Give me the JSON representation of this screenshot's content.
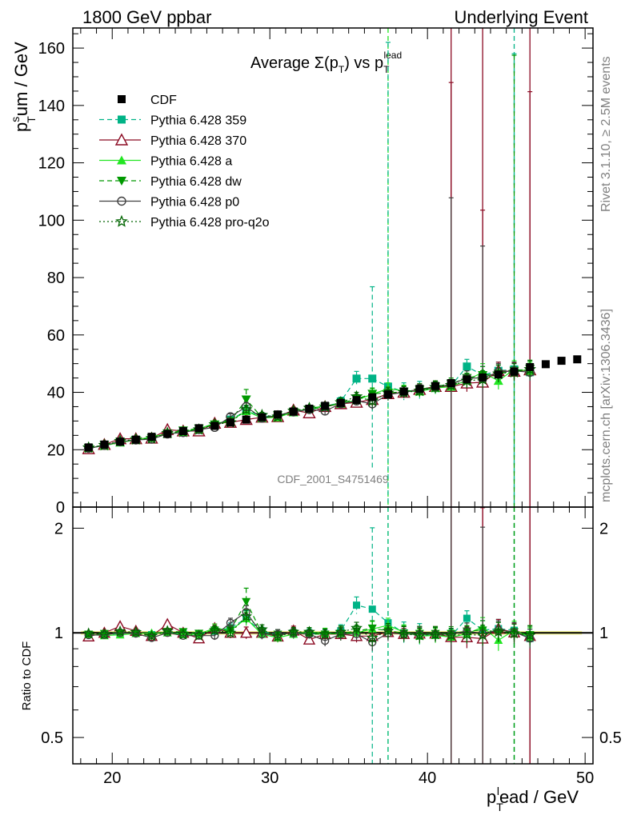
{
  "header": {
    "left": "1800 GeV ppbar",
    "right": "Underlying Event"
  },
  "side": {
    "rivet": "Rivet 3.1.10, ≥ 2.5M events",
    "mcplots": "mcplots.cern.ch [arXiv:1306.3436]"
  },
  "analysis_label": "CDF_2001_S4751469",
  "chart_data": [
    {
      "type": "scatter",
      "title": "Average Σ(p_T) vs p_T^lead",
      "title_parts": {
        "main": "Average ",
        "sigma": "Σ(p",
        "sub": "T",
        "close": ") vs p",
        "sub2": "T",
        "sup": "lead"
      },
      "ylabel_parts": {
        "p": "p",
        "sup": "s",
        "sub": "T",
        "rest": "um / GeV"
      },
      "xlim": [
        17.5,
        50.5
      ],
      "ylim": [
        0,
        167
      ],
      "yticks": [
        0,
        20,
        40,
        60,
        80,
        100,
        120,
        140,
        160
      ],
      "ytick_labels": [
        "0",
        "20",
        "40",
        "60",
        "80",
        "100",
        "120",
        "140",
        "160"
      ],
      "legend_position": "top-left",
      "series": [
        {
          "name": "CDF",
          "color": "#000000",
          "marker": "square",
          "line": "none",
          "x": [
            18.5,
            19.5,
            20.5,
            21.5,
            22.5,
            23.5,
            24.5,
            25.5,
            26.5,
            27.5,
            28.5,
            29.5,
            30.5,
            31.5,
            32.5,
            33.5,
            34.5,
            35.5,
            36.5,
            37.5,
            38.5,
            39.5,
            40.5,
            41.5,
            42.5,
            43.5,
            44.5,
            45.5,
            46.5,
            47.5,
            48.5,
            49.5
          ],
          "y": [
            20.8,
            21.8,
            22.8,
            23.5,
            24.5,
            25.5,
            26.5,
            27.5,
            28.3,
            29.5,
            30.5,
            31.3,
            32.3,
            33.3,
            34.3,
            35.3,
            36.3,
            37.3,
            38.3,
            39.3,
            40.3,
            41.2,
            42.2,
            43.2,
            44.5,
            45.2,
            46.2,
            47.2,
            48.8,
            49.8,
            51.0,
            51.5
          ]
        },
        {
          "name": "Pythia 6.428 359",
          "color": "#00b386",
          "marker": "square",
          "line": "dashed",
          "x": [
            18.5,
            19.5,
            20.5,
            21.5,
            22.5,
            23.5,
            24.5,
            25.5,
            26.5,
            27.5,
            28.5,
            29.5,
            30.5,
            31.5,
            32.5,
            33.5,
            34.5,
            35.5,
            36.5,
            37.5,
            38.5,
            39.5,
            40.5,
            41.5,
            42.5,
            43.5,
            44.5,
            45.5,
            46.5
          ],
          "y": [
            20.6,
            21.5,
            22.7,
            23.5,
            24.2,
            25.6,
            26.3,
            27.3,
            28.6,
            30.5,
            33.5,
            31.5,
            32.0,
            33.3,
            34.2,
            34.8,
            36.8,
            44.8,
            44.8,
            42.0,
            40.3,
            40.8,
            41.5,
            42.3,
            49.0,
            46.0,
            47.5,
            48.0,
            47.0
          ],
          "err": [
            0.5,
            0.5,
            0.5,
            0.5,
            0.5,
            0.5,
            0.5,
            0.5,
            0.8,
            1.0,
            1.8,
            1.0,
            1.0,
            1.0,
            1.0,
            1.2,
            1.5,
            2.5,
            32,
            120,
            3,
            3,
            2,
            2,
            2.5,
            3,
            3,
            110,
            3
          ]
        },
        {
          "name": "Pythia 6.428 370",
          "color": "#8b0a22",
          "marker": "triangle-open",
          "line": "solid",
          "x": [
            18.5,
            19.5,
            20.5,
            21.5,
            22.5,
            23.5,
            24.5,
            25.5,
            26.5,
            27.5,
            28.5,
            29.5,
            30.5,
            31.5,
            32.5,
            33.5,
            34.5,
            35.5,
            36.5,
            37.5,
            38.5,
            39.5,
            40.5,
            41.5,
            42.5,
            43.5,
            44.5,
            45.5,
            46.5
          ],
          "y": [
            20.3,
            21.8,
            23.8,
            23.8,
            24.0,
            27.0,
            26.5,
            26.5,
            29.2,
            29.5,
            30.5,
            31.3,
            31.5,
            33.8,
            32.8,
            35.0,
            36.0,
            36.5,
            37.5,
            39.5,
            40.0,
            41.0,
            42.0,
            42.0,
            43.2,
            43.5,
            47.5,
            47.3,
            47.8
          ],
          "err": [
            0.5,
            0.5,
            0.5,
            0.5,
            0.5,
            0.5,
            0.5,
            0.5,
            0.8,
            1.0,
            1.2,
            1.0,
            1.0,
            1.0,
            1.0,
            1.2,
            1.5,
            1.5,
            1.5,
            1.5,
            1.5,
            2,
            2,
            106,
            3,
            60,
            3,
            3,
            97
          ]
        },
        {
          "name": "Pythia 6.428 a",
          "color": "#22e622",
          "marker": "triangle",
          "line": "solid",
          "x": [
            18.5,
            19.5,
            20.5,
            21.5,
            22.5,
            23.5,
            24.5,
            25.5,
            26.5,
            27.5,
            28.5,
            29.5,
            30.5,
            31.5,
            32.5,
            33.5,
            34.5,
            35.5,
            36.5,
            37.5,
            38.5,
            39.5,
            40.5,
            41.5,
            42.5,
            43.5,
            44.5,
            45.5,
            46.5
          ],
          "y": [
            20.6,
            21.4,
            22.5,
            23.4,
            24.5,
            25.5,
            26.2,
            27.3,
            29.2,
            30.0,
            33.5,
            31.0,
            31.3,
            33.0,
            34.5,
            35.2,
            36.0,
            37.3,
            39.3,
            41.3,
            40.5,
            40.3,
            41.5,
            42.0,
            44.2,
            47.0,
            44.0,
            48.0,
            47.5
          ],
          "err": [
            0.5,
            0.5,
            0.5,
            0.5,
            0.5,
            0.5,
            0.5,
            0.5,
            0.8,
            1.0,
            1.5,
            1.0,
            1.0,
            1.0,
            1.0,
            1.2,
            1.5,
            1.5,
            2,
            2,
            2,
            2,
            2,
            2,
            2.5,
            3,
            3,
            3,
            3
          ]
        },
        {
          "name": "Pythia 6.428 dw",
          "color": "#009900",
          "marker": "triangle-down",
          "line": "dashed",
          "x": [
            18.5,
            19.5,
            20.5,
            21.5,
            22.5,
            23.5,
            24.5,
            25.5,
            26.5,
            27.5,
            28.5,
            29.5,
            30.5,
            31.5,
            32.5,
            33.5,
            34.5,
            35.5,
            36.5,
            37.5,
            38.5,
            39.5,
            40.5,
            41.5,
            42.5,
            43.5,
            44.5,
            45.5,
            46.5
          ],
          "y": [
            20.6,
            21.7,
            22.8,
            23.4,
            24.0,
            25.7,
            26.7,
            27.4,
            28.8,
            30.0,
            37.5,
            31.2,
            32.0,
            33.2,
            34.0,
            35.0,
            36.2,
            37.7,
            39.5,
            39.8,
            40.2,
            41.0,
            42.0,
            43.0,
            45.0,
            46.0,
            46.5,
            47.5,
            48.2
          ],
          "err": [
            0.5,
            0.5,
            0.5,
            0.5,
            0.5,
            0.5,
            0.5,
            0.5,
            0.8,
            1.0,
            3.5,
            1.0,
            1.0,
            1.0,
            1.0,
            1.2,
            1.5,
            1.5,
            2,
            2,
            2,
            2,
            2,
            2,
            2.5,
            3,
            3,
            110,
            3
          ]
        },
        {
          "name": "Pythia 6.428 p0",
          "color": "#404040",
          "marker": "circle-open",
          "line": "solid",
          "x": [
            18.5,
            19.5,
            20.5,
            21.5,
            22.5,
            23.5,
            24.5,
            25.5,
            26.5,
            27.5,
            28.5,
            29.5,
            30.5,
            31.5,
            32.5,
            33.5,
            34.5,
            35.5,
            36.5,
            37.5,
            38.5,
            39.5,
            40.5,
            41.5,
            42.5,
            43.5,
            44.5,
            45.5,
            46.5
          ],
          "y": [
            20.5,
            21.5,
            22.8,
            23.4,
            23.7,
            25.5,
            26.0,
            27.0,
            27.8,
            31.5,
            35.0,
            31.0,
            32.0,
            33.2,
            34.0,
            33.5,
            36.0,
            37.0,
            36.0,
            39.2,
            40.0,
            40.8,
            41.8,
            42.8,
            45.0,
            45.0,
            47.0,
            47.5,
            47.0
          ],
          "err": [
            0.5,
            0.5,
            0.5,
            0.5,
            0.5,
            0.5,
            0.5,
            0.5,
            0.8,
            1.0,
            1.5,
            1.0,
            1.0,
            1.0,
            1.0,
            1.2,
            1.5,
            1.5,
            2,
            2,
            2,
            2,
            2,
            65,
            2.5,
            46,
            3,
            3,
            3
          ]
        },
        {
          "name": "Pythia 6.428 pro-q2o",
          "color": "#006400",
          "marker": "star-open",
          "line": "dotted",
          "x": [
            18.5,
            19.5,
            20.5,
            21.5,
            22.5,
            23.5,
            24.5,
            25.5,
            26.5,
            27.5,
            28.5,
            29.5,
            30.5,
            31.5,
            32.5,
            33.5,
            34.5,
            35.5,
            36.5,
            37.5,
            38.5,
            39.5,
            40.5,
            41.5,
            42.5,
            43.5,
            44.5,
            45.5,
            46.5
          ],
          "y": [
            20.7,
            21.6,
            23.0,
            23.6,
            24.0,
            25.8,
            26.2,
            27.0,
            28.8,
            29.5,
            34.0,
            32.0,
            31.5,
            33.5,
            34.5,
            35.0,
            36.5,
            38.5,
            37.0,
            39.8,
            40.0,
            40.5,
            41.8,
            42.5,
            44.0,
            44.5,
            46.5,
            47.0,
            48.0
          ],
          "err": [
            0.5,
            0.5,
            0.5,
            0.5,
            0.5,
            0.5,
            0.5,
            0.5,
            0.8,
            1.0,
            1.5,
            1.0,
            1.0,
            1.0,
            1.0,
            1.2,
            1.5,
            1.5,
            2,
            2,
            2,
            2,
            2,
            2,
            2.5,
            3,
            3,
            3,
            3
          ]
        }
      ],
      "vertical_lines": [
        {
          "x": 37.5,
          "color": "#22e622",
          "style": "dashed"
        },
        {
          "x": 41.5,
          "color": "#8b0a22",
          "style": "solid"
        },
        {
          "x": 43.5,
          "color": "#8b0a22",
          "style": "solid"
        },
        {
          "x": 45.5,
          "color": "#00b386",
          "style": "dashed"
        },
        {
          "x": 46.5,
          "color": "#8b0a22",
          "style": "solid"
        }
      ]
    },
    {
      "type": "scatter",
      "title": "",
      "ylabel": "Ratio to CDF",
      "xlabel_parts": {
        "p": "p",
        "sub": "T",
        "sup": "l",
        "rest": "ead / GeV"
      },
      "xlim": [
        17.5,
        50.5
      ],
      "ylim": [
        0.42,
        2.3
      ],
      "yscale": "log",
      "xticks": [
        20,
        30,
        40,
        50
      ],
      "xtick_labels": [
        "20",
        "30",
        "40",
        "50"
      ],
      "yticks": [
        0.5,
        1,
        2
      ],
      "ytick_labels": [
        "0.5",
        "1",
        "2"
      ],
      "reference_line": 1
    }
  ]
}
